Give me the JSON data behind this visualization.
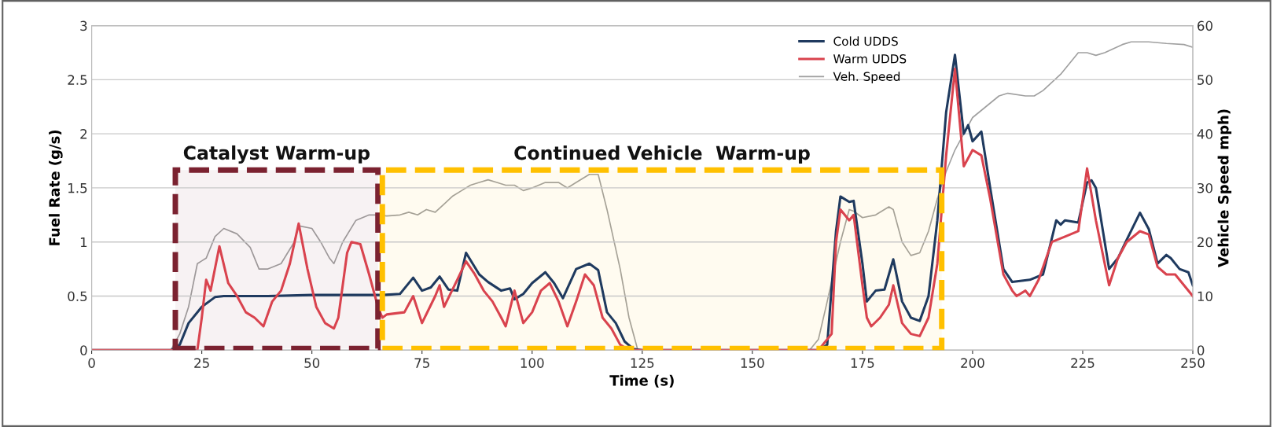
{
  "chart_data": {
    "type": "line",
    "xlabel": "Time (s)",
    "ylabel": "Fuel Rate (g/s)",
    "y2label": "Vehicle Speed mph)",
    "xlim": [
      0,
      250
    ],
    "xticks": [
      0,
      25,
      50,
      75,
      100,
      125,
      150,
      175,
      200,
      225,
      250
    ],
    "ylim": [
      0,
      3
    ],
    "yticks": [
      0,
      0.5,
      1,
      1.5,
      2,
      2.5,
      3
    ],
    "y2lim": [
      0,
      60
    ],
    "y2ticks": [
      0,
      10,
      20,
      30,
      40,
      50,
      60
    ],
    "grid": "y",
    "legend": "top right",
    "marker": "none",
    "line_style": "solid",
    "bands": [
      {
        "axis": "x",
        "from": 19,
        "to": 65,
        "label": "Catalyst Warm-up",
        "color": "#7b2230"
      },
      {
        "axis": "x",
        "from": 66,
        "to": 193,
        "label": "Continued Vehicle  Warm-up",
        "color": "#ffc000"
      }
    ],
    "series": [
      {
        "name": "Cold UDDS",
        "color": "#1f3a5f",
        "x": [
          0,
          18,
          20,
          22,
          25,
          28,
          30,
          40,
          50,
          60,
          66,
          70,
          73,
          75,
          77,
          79,
          81,
          83,
          85,
          88,
          90,
          93,
          95,
          96,
          98,
          100,
          103,
          105,
          107,
          110,
          113,
          115,
          117,
          119,
          121,
          123,
          125,
          165,
          167,
          169,
          170,
          172,
          173,
          175,
          176,
          178,
          180,
          182,
          184,
          186,
          188,
          190,
          192,
          194,
          196,
          198,
          199,
          200,
          202,
          204,
          207,
          209,
          213,
          216,
          219,
          220,
          221,
          224,
          226,
          227,
          228,
          231,
          233,
          235,
          238,
          240,
          242,
          244,
          245,
          247,
          249,
          250
        ],
        "values": [
          0,
          0,
          0.05,
          0.25,
          0.4,
          0.49,
          0.5,
          0.5,
          0.51,
          0.51,
          0.51,
          0.52,
          0.67,
          0.55,
          0.58,
          0.68,
          0.56,
          0.55,
          0.9,
          0.7,
          0.63,
          0.55,
          0.57,
          0.47,
          0.52,
          0.62,
          0.72,
          0.62,
          0.48,
          0.75,
          0.8,
          0.74,
          0.35,
          0.25,
          0.08,
          0.01,
          0,
          0,
          0.05,
          1.1,
          1.42,
          1.37,
          1.38,
          0.8,
          0.45,
          0.55,
          0.56,
          0.84,
          0.45,
          0.3,
          0.27,
          0.5,
          1.2,
          2.2,
          2.73,
          2.0,
          2.08,
          1.93,
          2.02,
          1.5,
          0.75,
          0.63,
          0.65,
          0.7,
          1.2,
          1.16,
          1.2,
          1.18,
          1.55,
          1.57,
          1.5,
          0.75,
          0.85,
          1.02,
          1.27,
          1.12,
          0.8,
          0.88,
          0.85,
          0.75,
          0.72,
          0.6
        ]
      },
      {
        "name": "Warm UDDS",
        "color": "#d9434e",
        "x": [
          0,
          24,
          25,
          26,
          27,
          29,
          31,
          33,
          35,
          37,
          39,
          41,
          43,
          45,
          47,
          49,
          51,
          53,
          55,
          56,
          58,
          59,
          61,
          63,
          65,
          66,
          67,
          71,
          73,
          75,
          78,
          79,
          80,
          83,
          85,
          87,
          89,
          91,
          93,
          94,
          96,
          98,
          100,
          102,
          104,
          106,
          108,
          110,
          112,
          114,
          116,
          118,
          120,
          122,
          165,
          168,
          169,
          170,
          172,
          173,
          175,
          176,
          177,
          179,
          181,
          182,
          184,
          186,
          188,
          190,
          192,
          194,
          196,
          198,
          200,
          202,
          204,
          207,
          209,
          210,
          212,
          213,
          215,
          218,
          221,
          224,
          226,
          228,
          231,
          233,
          235,
          238,
          240,
          242,
          244,
          246,
          248,
          250
        ],
        "values": [
          0,
          0,
          0.3,
          0.65,
          0.55,
          0.96,
          0.62,
          0.5,
          0.35,
          0.3,
          0.22,
          0.45,
          0.55,
          0.8,
          1.17,
          0.75,
          0.4,
          0.25,
          0.2,
          0.3,
          0.9,
          1.0,
          0.98,
          0.7,
          0.4,
          0.3,
          0.33,
          0.35,
          0.5,
          0.25,
          0.5,
          0.6,
          0.4,
          0.65,
          0.82,
          0.7,
          0.55,
          0.45,
          0.3,
          0.22,
          0.55,
          0.25,
          0.35,
          0.55,
          0.62,
          0.45,
          0.22,
          0.45,
          0.7,
          0.6,
          0.3,
          0.2,
          0.05,
          0,
          0,
          0.15,
          1.0,
          1.3,
          1.2,
          1.25,
          0.6,
          0.3,
          0.22,
          0.3,
          0.42,
          0.6,
          0.25,
          0.15,
          0.13,
          0.3,
          0.8,
          1.8,
          2.6,
          1.7,
          1.85,
          1.8,
          1.4,
          0.7,
          0.55,
          0.5,
          0.55,
          0.5,
          0.65,
          1.0,
          1.05,
          1.1,
          1.68,
          1.2,
          0.6,
          0.85,
          1.0,
          1.1,
          1.07,
          0.77,
          0.7,
          0.7,
          0.6,
          0.5
        ]
      },
      {
        "name": "Veh. Speed",
        "color": "#a0a0a0",
        "axis": "y2",
        "x": [
          0,
          18,
          20,
          22,
          24,
          26,
          28,
          30,
          33,
          36,
          38,
          40,
          43,
          46,
          47,
          50,
          52,
          54,
          55,
          57,
          60,
          63,
          65,
          67,
          70,
          72,
          74,
          76,
          78,
          80,
          82,
          84,
          86,
          88,
          90,
          92,
          94,
          96,
          98,
          100,
          103,
          106,
          108,
          110,
          113,
          115,
          117,
          120,
          122,
          124,
          163,
          165,
          167,
          170,
          172,
          173,
          175,
          178,
          181,
          182,
          184,
          186,
          188,
          190,
          192,
          194,
          196,
          198,
          200,
          203,
          206,
          208,
          212,
          214,
          216,
          220,
          222,
          224,
          226,
          228,
          230,
          234,
          236,
          240,
          244,
          248,
          250
        ],
        "values": [
          0,
          0,
          3,
          8,
          16,
          17,
          21,
          22.5,
          21.5,
          19,
          15,
          15,
          16,
          20,
          23,
          22.5,
          20,
          17,
          16,
          20,
          24,
          25,
          25,
          24.8,
          25,
          25.5,
          25,
          26,
          25.5,
          27,
          28.5,
          29.5,
          30.5,
          31,
          31.5,
          31,
          30.5,
          30.5,
          29.5,
          30,
          31,
          31,
          30,
          31,
          32.5,
          32.5,
          26,
          15,
          6,
          0,
          0,
          2,
          9,
          20,
          26,
          25.7,
          24.5,
          25,
          26.5,
          26,
          20,
          17.5,
          18,
          22,
          28,
          33,
          37,
          40,
          43,
          45,
          47,
          47.5,
          47,
          47,
          48,
          51,
          53,
          55,
          55,
          54.5,
          55,
          56.5,
          57,
          57,
          56.7,
          56.5,
          56
        ]
      }
    ]
  }
}
